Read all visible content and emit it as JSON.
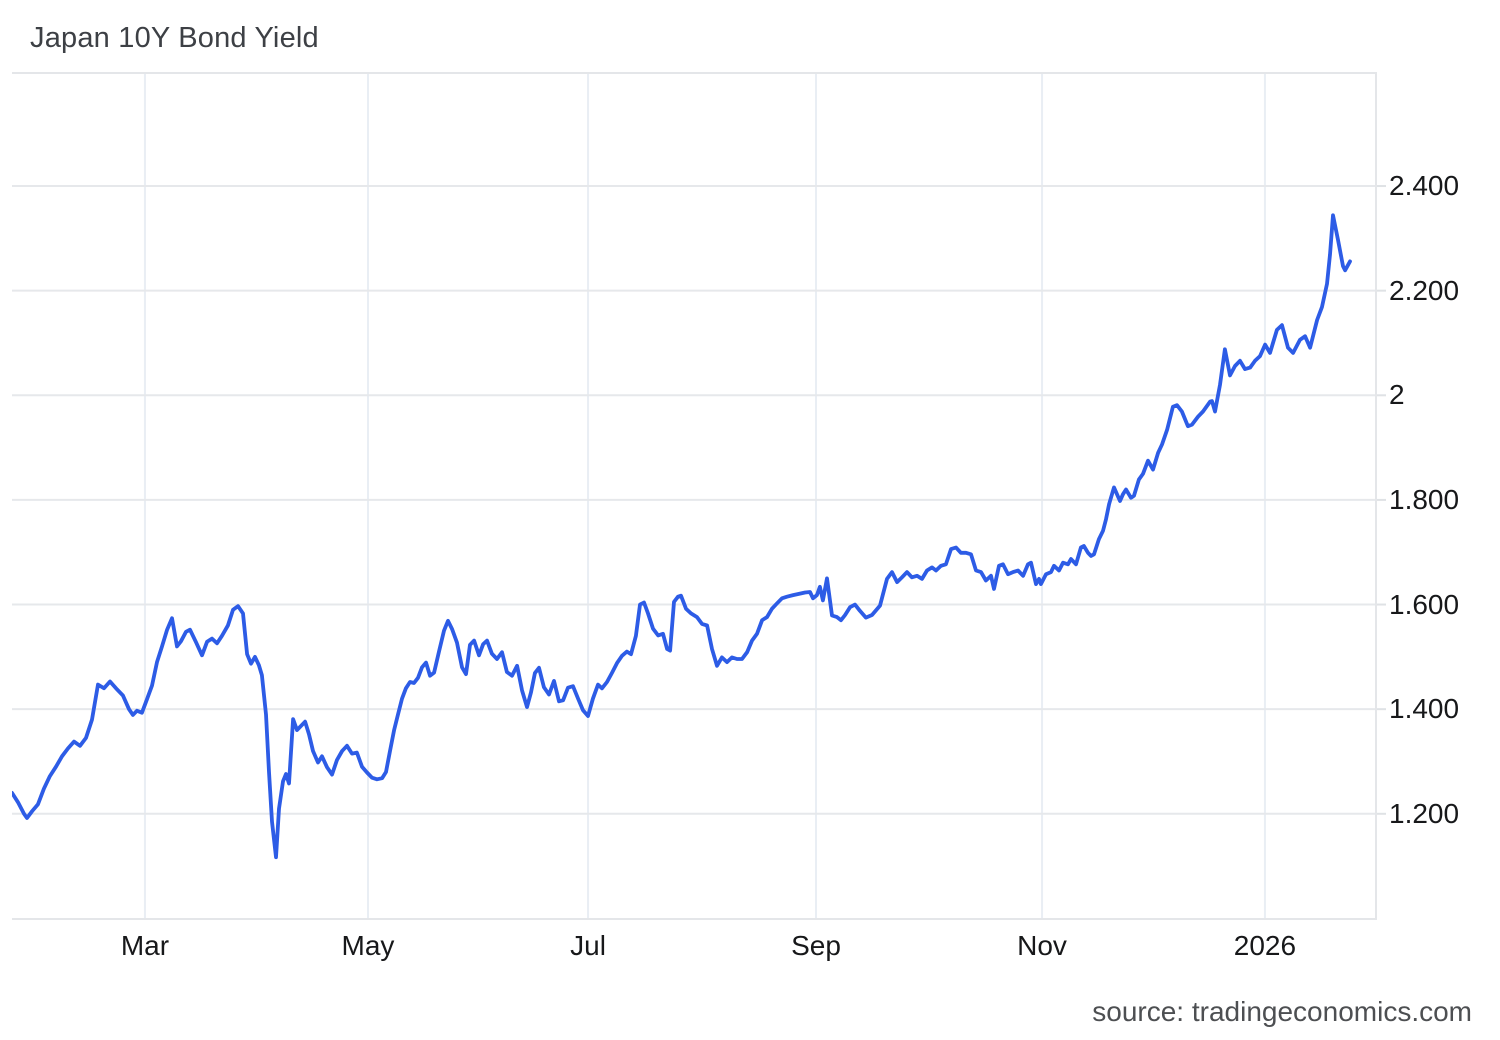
{
  "page": {
    "title": "Japan 10Y Bond Yield",
    "source": "source: tradingeconomics.com",
    "background": "#ffffff"
  },
  "chart_data": {
    "type": "line",
    "title": "Japan 10Y Bond Yield",
    "series_name": "Japan 10 Year Government Bond Yield (%)",
    "line_color": "#2d5ce6",
    "grid": true,
    "legend": "none",
    "ylim": [
      0.997,
      2.618
    ],
    "y_ticks": [
      {
        "label": "2.400",
        "value": 2.4
      },
      {
        "label": "2.200",
        "value": 2.2
      },
      {
        "label": "2",
        "value": 2.0
      },
      {
        "label": "1.800",
        "value": 1.8
      },
      {
        "label": "1.600",
        "value": 1.6
      },
      {
        "label": "1.400",
        "value": 1.4
      },
      {
        "label": "1.200",
        "value": 1.2
      }
    ],
    "x_ticks": [
      {
        "label": "Mar",
        "pos": 0.0974
      },
      {
        "label": "May",
        "pos": 0.2608
      },
      {
        "label": "Jul",
        "pos": 0.422
      },
      {
        "label": "Sep",
        "pos": 0.589
      },
      {
        "label": "Nov",
        "pos": 0.7546
      },
      {
        "label": "2026",
        "pos": 0.9179
      }
    ],
    "points": [
      [
        0.0,
        1.24
      ],
      [
        0.0044,
        1.222
      ],
      [
        0.0088,
        1.2
      ],
      [
        0.011,
        1.192
      ],
      [
        0.0147,
        1.205
      ],
      [
        0.019,
        1.218
      ],
      [
        0.0234,
        1.248
      ],
      [
        0.0278,
        1.272
      ],
      [
        0.0322,
        1.29
      ],
      [
        0.0366,
        1.31
      ],
      [
        0.041,
        1.325
      ],
      [
        0.0454,
        1.338
      ],
      [
        0.0498,
        1.33
      ],
      [
        0.0542,
        1.345
      ],
      [
        0.0586,
        1.38
      ],
      [
        0.063,
        1.447
      ],
      [
        0.0674,
        1.44
      ],
      [
        0.0718,
        1.453
      ],
      [
        0.0762,
        1.44
      ],
      [
        0.0813,
        1.426
      ],
      [
        0.0857,
        1.4
      ],
      [
        0.0886,
        1.389
      ],
      [
        0.0916,
        1.397
      ],
      [
        0.0952,
        1.393
      ],
      [
        0.0989,
        1.419
      ],
      [
        0.1026,
        1.445
      ],
      [
        0.1062,
        1.49
      ],
      [
        0.1099,
        1.52
      ],
      [
        0.1136,
        1.552
      ],
      [
        0.1172,
        1.574
      ],
      [
        0.1209,
        1.52
      ],
      [
        0.1238,
        1.53
      ],
      [
        0.1275,
        1.548
      ],
      [
        0.1304,
        1.552
      ],
      [
        0.1348,
        1.528
      ],
      [
        0.1392,
        1.503
      ],
      [
        0.1429,
        1.529
      ],
      [
        0.1465,
        1.535
      ],
      [
        0.1502,
        1.526
      ],
      [
        0.1538,
        1.54
      ],
      [
        0.1582,
        1.56
      ],
      [
        0.1619,
        1.59
      ],
      [
        0.1656,
        1.597
      ],
      [
        0.1692,
        1.583
      ],
      [
        0.1722,
        1.505
      ],
      [
        0.1751,
        1.487
      ],
      [
        0.178,
        1.5
      ],
      [
        0.1809,
        1.484
      ],
      [
        0.1831,
        1.465
      ],
      [
        0.1861,
        1.39
      ],
      [
        0.1883,
        1.28
      ],
      [
        0.1905,
        1.185
      ],
      [
        0.1934,
        1.117
      ],
      [
        0.1956,
        1.21
      ],
      [
        0.1985,
        1.262
      ],
      [
        0.2007,
        1.276
      ],
      [
        0.2029,
        1.258
      ],
      [
        0.2059,
        1.381
      ],
      [
        0.2088,
        1.36
      ],
      [
        0.2117,
        1.368
      ],
      [
        0.2147,
        1.376
      ],
      [
        0.2176,
        1.352
      ],
      [
        0.2205,
        1.32
      ],
      [
        0.2242,
        1.298
      ],
      [
        0.2271,
        1.31
      ],
      [
        0.2308,
        1.289
      ],
      [
        0.2344,
        1.275
      ],
      [
        0.2381,
        1.303
      ],
      [
        0.2418,
        1.32
      ],
      [
        0.2454,
        1.33
      ],
      [
        0.2491,
        1.315
      ],
      [
        0.2527,
        1.317
      ],
      [
        0.2564,
        1.29
      ],
      [
        0.2601,
        1.279
      ],
      [
        0.2637,
        1.269
      ],
      [
        0.2674,
        1.266
      ],
      [
        0.2711,
        1.268
      ],
      [
        0.274,
        1.28
      ],
      [
        0.2769,
        1.32
      ],
      [
        0.2799,
        1.36
      ],
      [
        0.2828,
        1.39
      ],
      [
        0.2857,
        1.42
      ],
      [
        0.2886,
        1.44
      ],
      [
        0.2916,
        1.452
      ],
      [
        0.2945,
        1.45
      ],
      [
        0.2974,
        1.46
      ],
      [
        0.3004,
        1.48
      ],
      [
        0.3033,
        1.489
      ],
      [
        0.3062,
        1.464
      ],
      [
        0.3092,
        1.47
      ],
      [
        0.3128,
        1.51
      ],
      [
        0.3165,
        1.55
      ],
      [
        0.3194,
        1.569
      ],
      [
        0.3224,
        1.553
      ],
      [
        0.326,
        1.527
      ],
      [
        0.3297,
        1.48
      ],
      [
        0.3326,
        1.467
      ],
      [
        0.3355,
        1.523
      ],
      [
        0.3385,
        1.531
      ],
      [
        0.3421,
        1.503
      ],
      [
        0.3451,
        1.524
      ],
      [
        0.348,
        1.531
      ],
      [
        0.3516,
        1.506
      ],
      [
        0.3553,
        1.496
      ],
      [
        0.359,
        1.509
      ],
      [
        0.3626,
        1.471
      ],
      [
        0.3663,
        1.464
      ],
      [
        0.37,
        1.483
      ],
      [
        0.3736,
        1.436
      ],
      [
        0.3773,
        1.404
      ],
      [
        0.3802,
        1.432
      ],
      [
        0.3831,
        1.469
      ],
      [
        0.3861,
        1.479
      ],
      [
        0.3897,
        1.442
      ],
      [
        0.3934,
        1.428
      ],
      [
        0.3971,
        1.454
      ],
      [
        0.4007,
        1.415
      ],
      [
        0.4037,
        1.417
      ],
      [
        0.4073,
        1.441
      ],
      [
        0.411,
        1.444
      ],
      [
        0.4147,
        1.42
      ],
      [
        0.4183,
        1.398
      ],
      [
        0.422,
        1.387
      ],
      [
        0.4256,
        1.42
      ],
      [
        0.4293,
        1.447
      ],
      [
        0.4322,
        1.44
      ],
      [
        0.4359,
        1.452
      ],
      [
        0.4396,
        1.47
      ],
      [
        0.4432,
        1.488
      ],
      [
        0.4469,
        1.502
      ],
      [
        0.4505,
        1.51
      ],
      [
        0.4535,
        1.505
      ],
      [
        0.4571,
        1.54
      ],
      [
        0.4601,
        1.6
      ],
      [
        0.463,
        1.604
      ],
      [
        0.4659,
        1.583
      ],
      [
        0.4696,
        1.554
      ],
      [
        0.4733,
        1.541
      ],
      [
        0.4769,
        1.544
      ],
      [
        0.4799,
        1.515
      ],
      [
        0.4821,
        1.512
      ],
      [
        0.485,
        1.605
      ],
      [
        0.4879,
        1.615
      ],
      [
        0.4901,
        1.617
      ],
      [
        0.4938,
        1.592
      ],
      [
        0.4974,
        1.583
      ],
      [
        0.5018,
        1.576
      ],
      [
        0.5055,
        1.563
      ],
      [
        0.5092,
        1.56
      ],
      [
        0.5128,
        1.515
      ],
      [
        0.5165,
        1.483
      ],
      [
        0.5201,
        1.499
      ],
      [
        0.5238,
        1.49
      ],
      [
        0.5275,
        1.499
      ],
      [
        0.5311,
        1.496
      ],
      [
        0.5348,
        1.496
      ],
      [
        0.5385,
        1.509
      ],
      [
        0.5421,
        1.531
      ],
      [
        0.5458,
        1.544
      ],
      [
        0.5495,
        1.57
      ],
      [
        0.5531,
        1.576
      ],
      [
        0.5568,
        1.592
      ],
      [
        0.5604,
        1.602
      ],
      [
        0.5641,
        1.612
      ],
      [
        0.5678,
        1.615
      ],
      [
        0.5722,
        1.618
      ],
      [
        0.5773,
        1.621
      ],
      [
        0.581,
        1.623
      ],
      [
        0.5846,
        1.624
      ],
      [
        0.5868,
        1.612
      ],
      [
        0.5897,
        1.618
      ],
      [
        0.5919,
        1.634
      ],
      [
        0.5941,
        1.608
      ],
      [
        0.5971,
        1.65
      ],
      [
        0.6007,
        1.579
      ],
      [
        0.6044,
        1.576
      ],
      [
        0.6073,
        1.57
      ],
      [
        0.6103,
        1.58
      ],
      [
        0.6139,
        1.595
      ],
      [
        0.6176,
        1.6
      ],
      [
        0.6212,
        1.588
      ],
      [
        0.6256,
        1.575
      ],
      [
        0.63,
        1.58
      ],
      [
        0.6359,
        1.598
      ],
      [
        0.641,
        1.649
      ],
      [
        0.6447,
        1.662
      ],
      [
        0.6484,
        1.643
      ],
      [
        0.652,
        1.652
      ],
      [
        0.6557,
        1.662
      ],
      [
        0.6593,
        1.652
      ],
      [
        0.663,
        1.655
      ],
      [
        0.6667,
        1.649
      ],
      [
        0.6703,
        1.665
      ],
      [
        0.674,
        1.671
      ],
      [
        0.6769,
        1.665
      ],
      [
        0.6806,
        1.674
      ],
      [
        0.6842,
        1.677
      ],
      [
        0.6879,
        1.706
      ],
      [
        0.6916,
        1.709
      ],
      [
        0.6952,
        1.699
      ],
      [
        0.6989,
        1.699
      ],
      [
        0.7026,
        1.696
      ],
      [
        0.7062,
        1.665
      ],
      [
        0.7099,
        1.662
      ],
      [
        0.7135,
        1.646
      ],
      [
        0.7172,
        1.655
      ],
      [
        0.7194,
        1.63
      ],
      [
        0.7231,
        1.674
      ],
      [
        0.726,
        1.677
      ],
      [
        0.7297,
        1.658
      ],
      [
        0.7333,
        1.662
      ],
      [
        0.737,
        1.665
      ],
      [
        0.7407,
        1.655
      ],
      [
        0.7443,
        1.677
      ],
      [
        0.7465,
        1.68
      ],
      [
        0.7502,
        1.639
      ],
      [
        0.7524,
        1.649
      ],
      [
        0.7538,
        1.639
      ],
      [
        0.7575,
        1.658
      ],
      [
        0.7612,
        1.662
      ],
      [
        0.7634,
        1.674
      ],
      [
        0.767,
        1.665
      ],
      [
        0.77,
        1.68
      ],
      [
        0.7736,
        1.677
      ],
      [
        0.7758,
        1.687
      ],
      [
        0.7795,
        1.677
      ],
      [
        0.7831,
        1.709
      ],
      [
        0.7853,
        1.712
      ],
      [
        0.7883,
        1.699
      ],
      [
        0.7905,
        1.693
      ],
      [
        0.7927,
        1.696
      ],
      [
        0.7963,
        1.725
      ],
      [
        0.7993,
        1.741
      ],
      [
        0.8015,
        1.763
      ],
      [
        0.8037,
        1.792
      ],
      [
        0.8073,
        1.824
      ],
      [
        0.8103,
        1.806
      ],
      [
        0.8117,
        1.798
      ],
      [
        0.8139,
        1.811
      ],
      [
        0.8161,
        1.82
      ],
      [
        0.8198,
        1.804
      ],
      [
        0.822,
        1.808
      ],
      [
        0.8256,
        1.839
      ],
      [
        0.8286,
        1.85
      ],
      [
        0.8322,
        1.875
      ],
      [
        0.8359,
        1.858
      ],
      [
        0.8396,
        1.89
      ],
      [
        0.8425,
        1.906
      ],
      [
        0.8462,
        1.934
      ],
      [
        0.8505,
        1.978
      ],
      [
        0.8535,
        1.981
      ],
      [
        0.8571,
        1.969
      ],
      [
        0.8615,
        1.941
      ],
      [
        0.8645,
        1.944
      ],
      [
        0.8689,
        1.959
      ],
      [
        0.8725,
        1.969
      ],
      [
        0.8777,
        1.988
      ],
      [
        0.8791,
        1.989
      ],
      [
        0.8813,
        1.969
      ],
      [
        0.885,
        2.02
      ],
      [
        0.8886,
        2.088
      ],
      [
        0.8923,
        2.038
      ],
      [
        0.896,
        2.056
      ],
      [
        0.8996,
        2.066
      ],
      [
        0.9033,
        2.05
      ],
      [
        0.907,
        2.053
      ],
      [
        0.9106,
        2.066
      ],
      [
        0.9143,
        2.075
      ],
      [
        0.918,
        2.097
      ],
      [
        0.9216,
        2.081
      ],
      [
        0.9267,
        2.125
      ],
      [
        0.9304,
        2.134
      ],
      [
        0.9348,
        2.091
      ],
      [
        0.9385,
        2.081
      ],
      [
        0.9436,
        2.106
      ],
      [
        0.9473,
        2.113
      ],
      [
        0.951,
        2.091
      ],
      [
        0.9561,
        2.144
      ],
      [
        0.9597,
        2.169
      ],
      [
        0.9634,
        2.213
      ],
      [
        0.9656,
        2.269
      ],
      [
        0.9678,
        2.344
      ],
      [
        0.9714,
        2.297
      ],
      [
        0.9751,
        2.247
      ],
      [
        0.9766,
        2.239
      ],
      [
        0.9802,
        2.256
      ]
    ]
  }
}
